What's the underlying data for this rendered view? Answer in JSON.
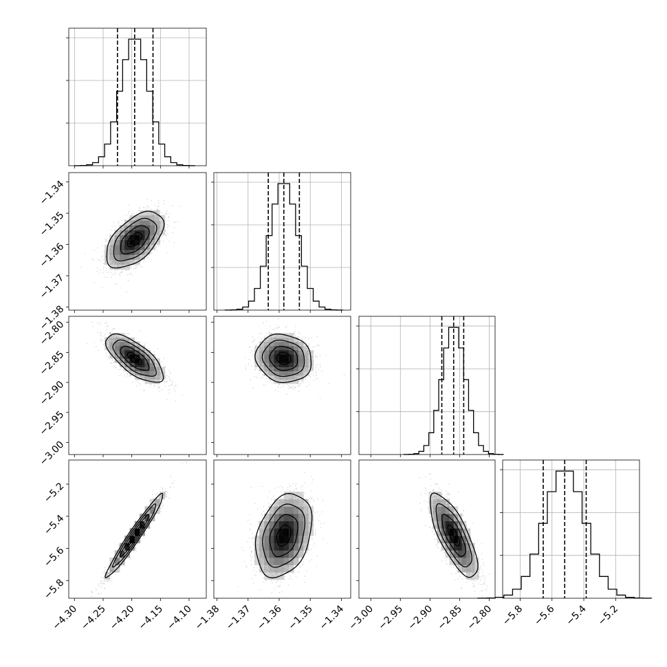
{
  "chart_data": {
    "type": "corner",
    "parameters": [
      {
        "mean": -4.195,
        "sd": 0.025,
        "range": [
          -4.31,
          -4.07
        ],
        "ticks": [
          "-4.30",
          "-4.25",
          "-4.20",
          "-4.15",
          "-4.10"
        ],
        "quantiles": [
          -4.225,
          -4.195,
          -4.163
        ]
      },
      {
        "mean": -1.3585,
        "sd": 0.0045,
        "range": [
          -1.381,
          -1.337
        ],
        "ticks": [
          "-1.38",
          "-1.37",
          "-1.36",
          "-1.35",
          "-1.34"
        ],
        "quantiles": [
          -1.3635,
          -1.3585,
          -1.3535
        ]
      },
      {
        "mean": -2.86,
        "sd": 0.02,
        "range": [
          -3.02,
          -2.79
        ],
        "ticks": [
          "-3.00",
          "-2.95",
          "-2.90",
          "-2.85",
          "-2.80"
        ],
        "quantiles": [
          -2.88,
          -2.86,
          -2.843
        ]
      },
      {
        "mean": -5.52,
        "sd": 0.13,
        "range": [
          -5.91,
          -5.05
        ],
        "ticks": [
          "-5.8",
          "-5.6",
          "-5.4",
          "-5.2"
        ],
        "quantiles": [
          -5.655,
          -5.52,
          -5.385
        ]
      }
    ],
    "correlations": {
      "1-0": 0.55,
      "2-0": -0.7,
      "2-1": -0.1,
      "3-0": 0.97,
      "3-1": 0.3,
      "3-2": -0.75
    },
    "histogram_bins": 20,
    "contour_levels_sigma": [
      0.5,
      1.0,
      1.5,
      2.0
    ],
    "xlabels": [],
    "ylabels": [],
    "grid": true,
    "colors": {
      "ink": "#000000",
      "points": "#808080",
      "grid": "#b0b0b0"
    }
  }
}
